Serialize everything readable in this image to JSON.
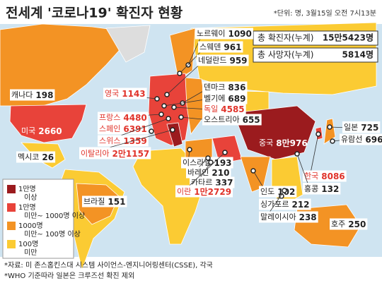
{
  "header": {
    "title": "전세계 '코로나19' 확진자 현황",
    "note": "*단위: 명, 3월15일 오전 7시13분"
  },
  "summary": [
    {
      "label": "총 확진자(누계)",
      "value": "15만5423명"
    },
    {
      "label": "총 사망자(누계)",
      "value": "5814명"
    }
  ],
  "countries": [
    {
      "name": "노르웨이",
      "value": "1090",
      "color": "#222222"
    },
    {
      "name": "스웨덴",
      "value": "961",
      "color": "#222222"
    },
    {
      "name": "네덜란드",
      "value": "959",
      "color": "#222222"
    },
    {
      "name": "영국",
      "value": "1143",
      "color": "#e0332a"
    },
    {
      "name": "덴마크",
      "value": "836",
      "color": "#222222"
    },
    {
      "name": "벨기에",
      "value": "689",
      "color": "#222222"
    },
    {
      "name": "독일",
      "value": "4585",
      "color": "#e0332a"
    },
    {
      "name": "오스트리아",
      "value": "655",
      "color": "#222222"
    },
    {
      "name": "프랑스",
      "value": "4480",
      "color": "#e0332a"
    },
    {
      "name": "스페인",
      "value": "6391",
      "color": "#e0332a"
    },
    {
      "name": "스위스",
      "value": "1359",
      "color": "#e0332a"
    },
    {
      "name": "이탈리아",
      "value": "2만1157",
      "color": "#e0332a"
    },
    {
      "name": "캐나다",
      "value": "198",
      "color": "#222222"
    },
    {
      "name": "미국",
      "value": "2660",
      "color": "#ffffff"
    },
    {
      "name": "멕시코",
      "value": "26",
      "color": "#222222"
    },
    {
      "name": "이스라엘",
      "value": "193",
      "color": "#222222"
    },
    {
      "name": "바레인",
      "value": "210",
      "color": "#222222"
    },
    {
      "name": "카타르",
      "value": "337",
      "color": "#222222"
    },
    {
      "name": "이란",
      "value": "1만2729",
      "color": "#e0332a"
    },
    {
      "name": "인도",
      "value": "102",
      "color": "#222222"
    },
    {
      "name": "싱가포르",
      "value": "212",
      "color": "#222222"
    },
    {
      "name": "말레이시아",
      "value": "238",
      "color": "#222222"
    },
    {
      "name": "중국",
      "value": "8만976",
      "color": "#ffffff"
    },
    {
      "name": "한국",
      "value": "8086",
      "color": "#e0332a"
    },
    {
      "name": "홍콩",
      "value": "132",
      "color": "#222222"
    },
    {
      "name": "일본",
      "value": "725",
      "color": "#222222"
    },
    {
      "name": "유람선",
      "value": "696",
      "color": "#222222"
    },
    {
      "name": "브라질",
      "value": "151",
      "color": "#222222"
    },
    {
      "name": "호주",
      "value": "250",
      "color": "#222222"
    }
  ],
  "legend": [
    {
      "label": "1만명 이상",
      "color": "#9b1b1e"
    },
    {
      "label": "1만명 미만~ 1000명 이상",
      "color": "#e8433a"
    },
    {
      "label": "1000명 미만~ 100명 이상",
      "color": "#f39324"
    },
    {
      "label": "100명 미만",
      "color": "#fbcb33"
    }
  ],
  "footer": [
    "*자료: 미 존스홉킨스대 시스템 사이언스-엔지니어링센터(CSSE), 각국",
    "*WHO 기준따라 일본은 크루즈선 확진 제외"
  ]
}
